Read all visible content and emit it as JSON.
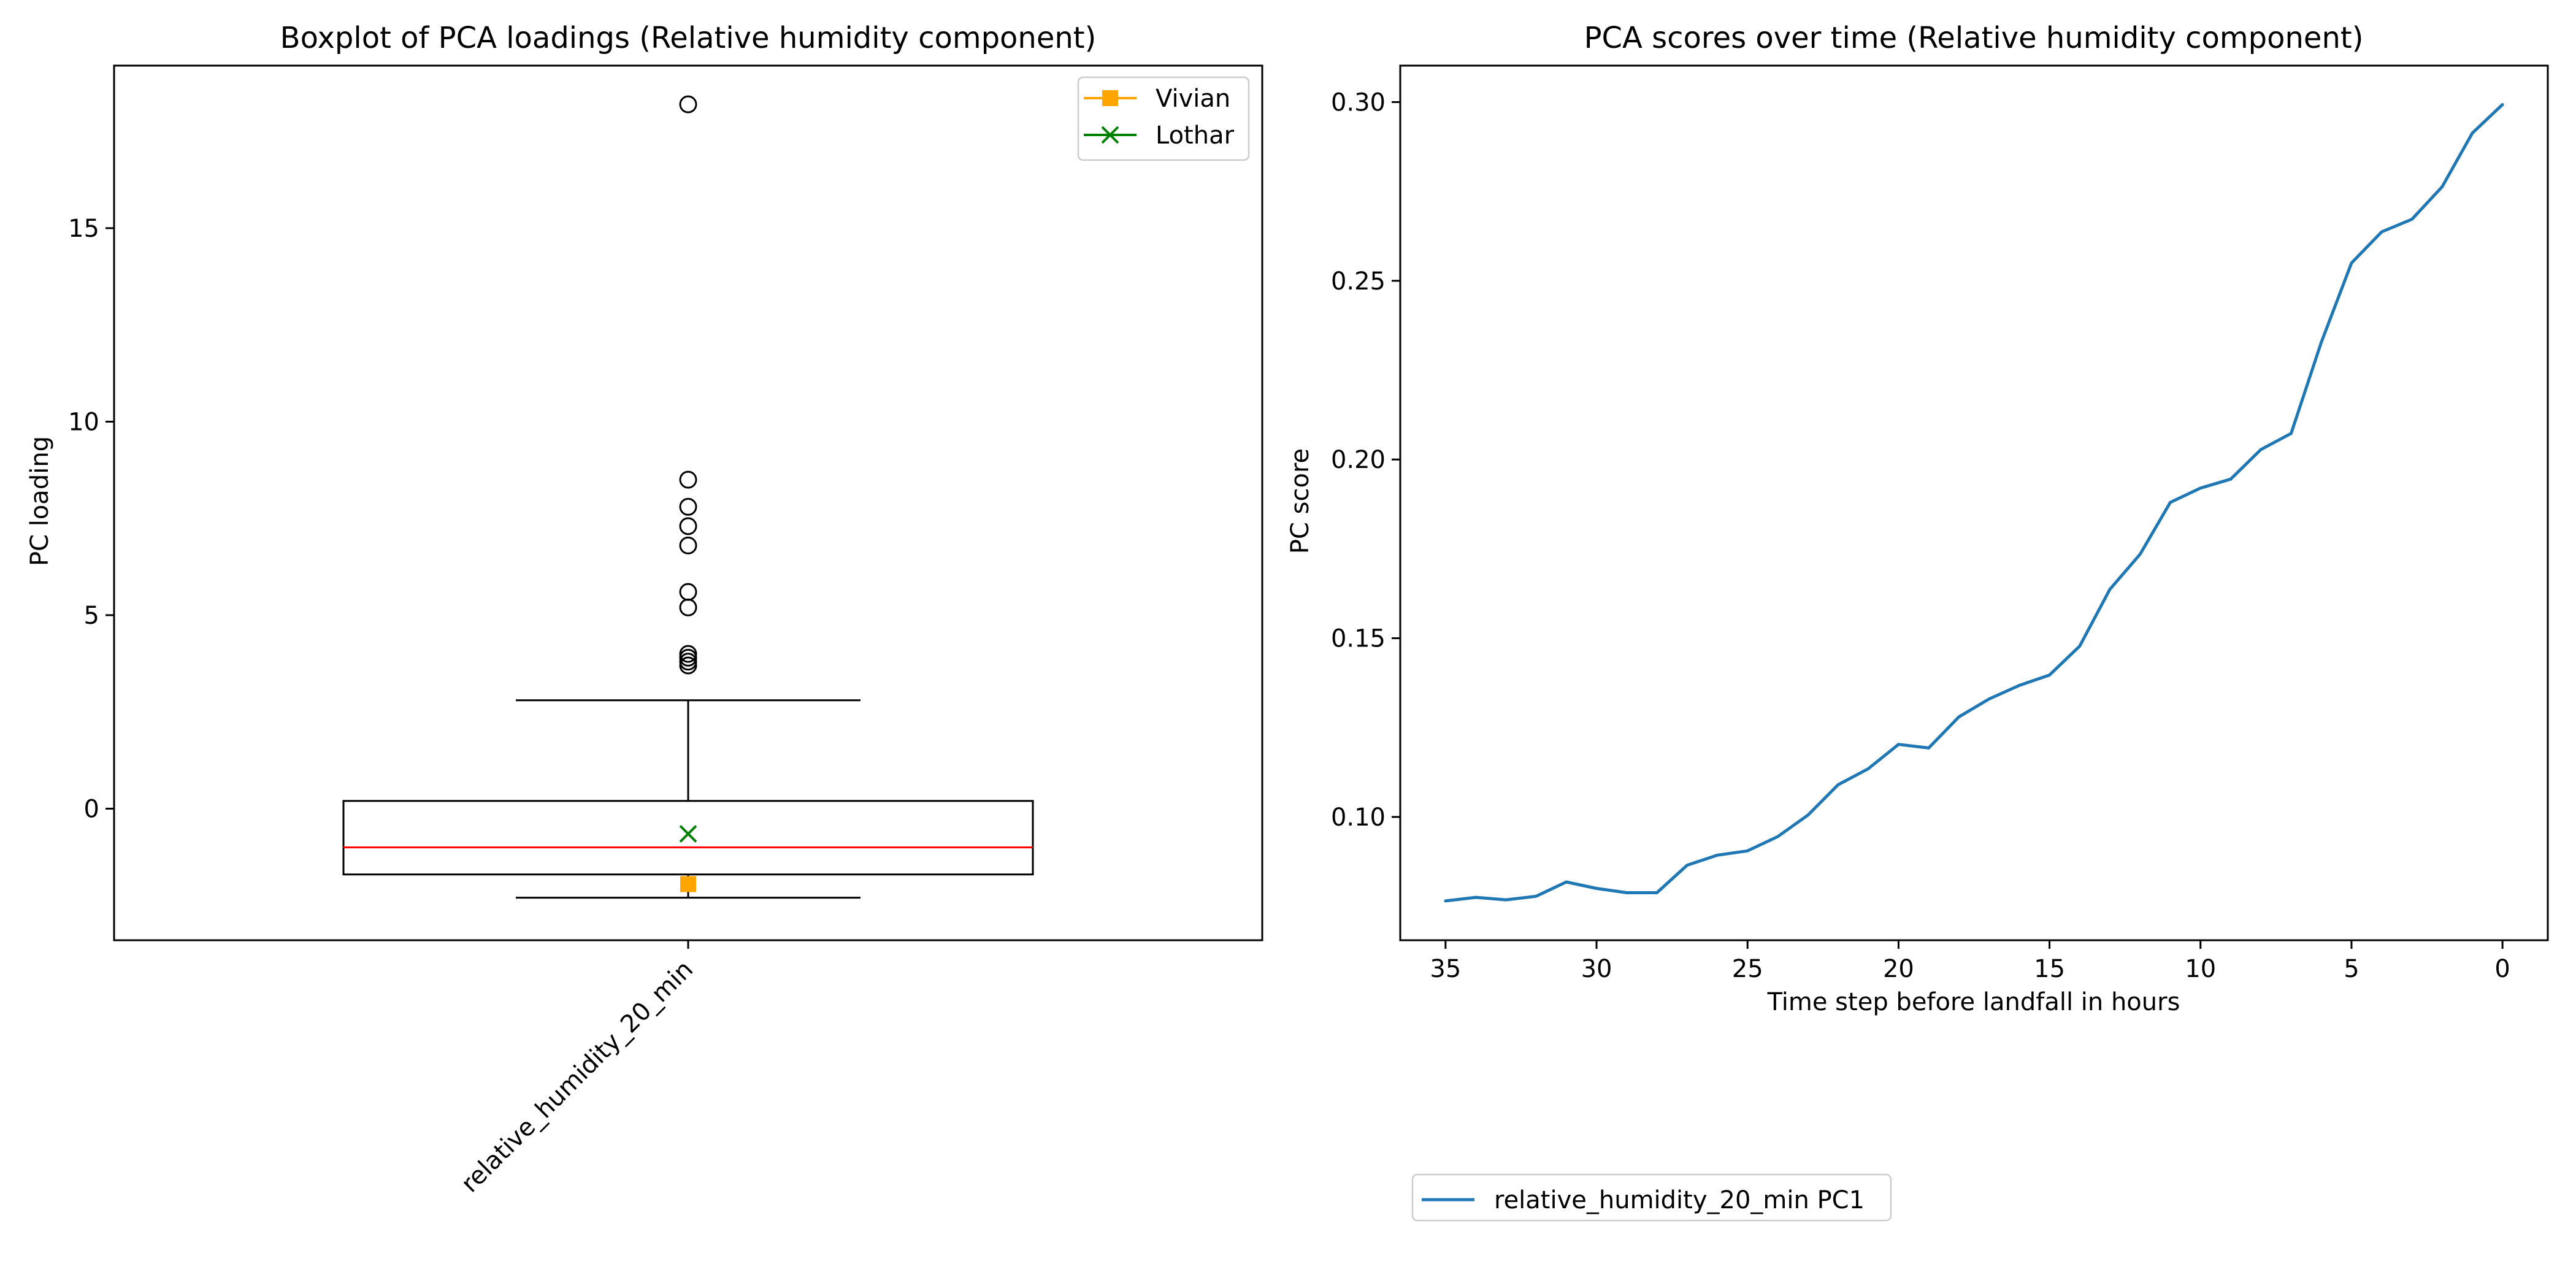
{
  "chart_data": [
    {
      "type": "box",
      "title": "Boxplot of PCA loadings (Relative humidity component)",
      "ylabel": "PC loading",
      "xlabel": "",
      "ylim": [
        -3.4,
        19.2
      ],
      "yticks": [
        0,
        5,
        10,
        15
      ],
      "categories": [
        "relative_humidity_20_min"
      ],
      "box": {
        "whisker_low": -2.3,
        "q1": -1.7,
        "median": -1.0,
        "q3": 0.2,
        "whisker_high": 2.8,
        "fliers": [
          18.2,
          8.5,
          7.8,
          7.3,
          6.8,
          5.6,
          5.2,
          4.0,
          3.9,
          3.8,
          3.7
        ]
      },
      "markers": [
        {
          "name": "Vivian",
          "value": -1.95,
          "marker": "square",
          "color": "#ffa500"
        },
        {
          "name": "Lothar",
          "value": -0.65,
          "marker": "x",
          "color": "#008000"
        }
      ],
      "legend_position": "top-right"
    },
    {
      "type": "line",
      "title": "PCA scores over time (Relative humidity component)",
      "xlabel": "Time step before landfall in hours",
      "ylabel": "PC score",
      "xlim": [
        36.5,
        -1.5
      ],
      "ylim": [
        0.0655,
        0.3102
      ],
      "xticks": [
        35,
        30,
        25,
        20,
        15,
        10,
        5,
        0
      ],
      "yticks": [
        0.1,
        0.15,
        0.2,
        0.25,
        0.3
      ],
      "series": [
        {
          "name": "relative_humidity_20_min PC1",
          "color": "#1f77b4",
          "x": [
            35,
            34,
            33,
            32,
            31,
            30,
            29,
            28,
            27,
            26,
            25,
            24,
            23,
            22,
            21,
            20,
            19,
            18,
            17,
            16,
            15,
            14,
            13,
            12,
            11,
            10,
            9,
            8,
            7,
            6,
            5,
            4,
            3,
            2,
            1,
            0
          ],
          "y": [
            0.0765,
            0.0775,
            0.0768,
            0.0778,
            0.0818,
            0.08,
            0.0788,
            0.0788,
            0.0865,
            0.0893,
            0.0905,
            0.0945,
            0.1005,
            0.109,
            0.1135,
            0.1203,
            0.1193,
            0.128,
            0.133,
            0.1368,
            0.1397,
            0.1478,
            0.1637,
            0.1735,
            0.188,
            0.192,
            0.1945,
            0.2028,
            0.2073,
            0.2328,
            0.255,
            0.2637,
            0.2672,
            0.2763,
            0.2913,
            0.2993
          ]
        }
      ],
      "legend_position": "below the chart, left"
    }
  ]
}
